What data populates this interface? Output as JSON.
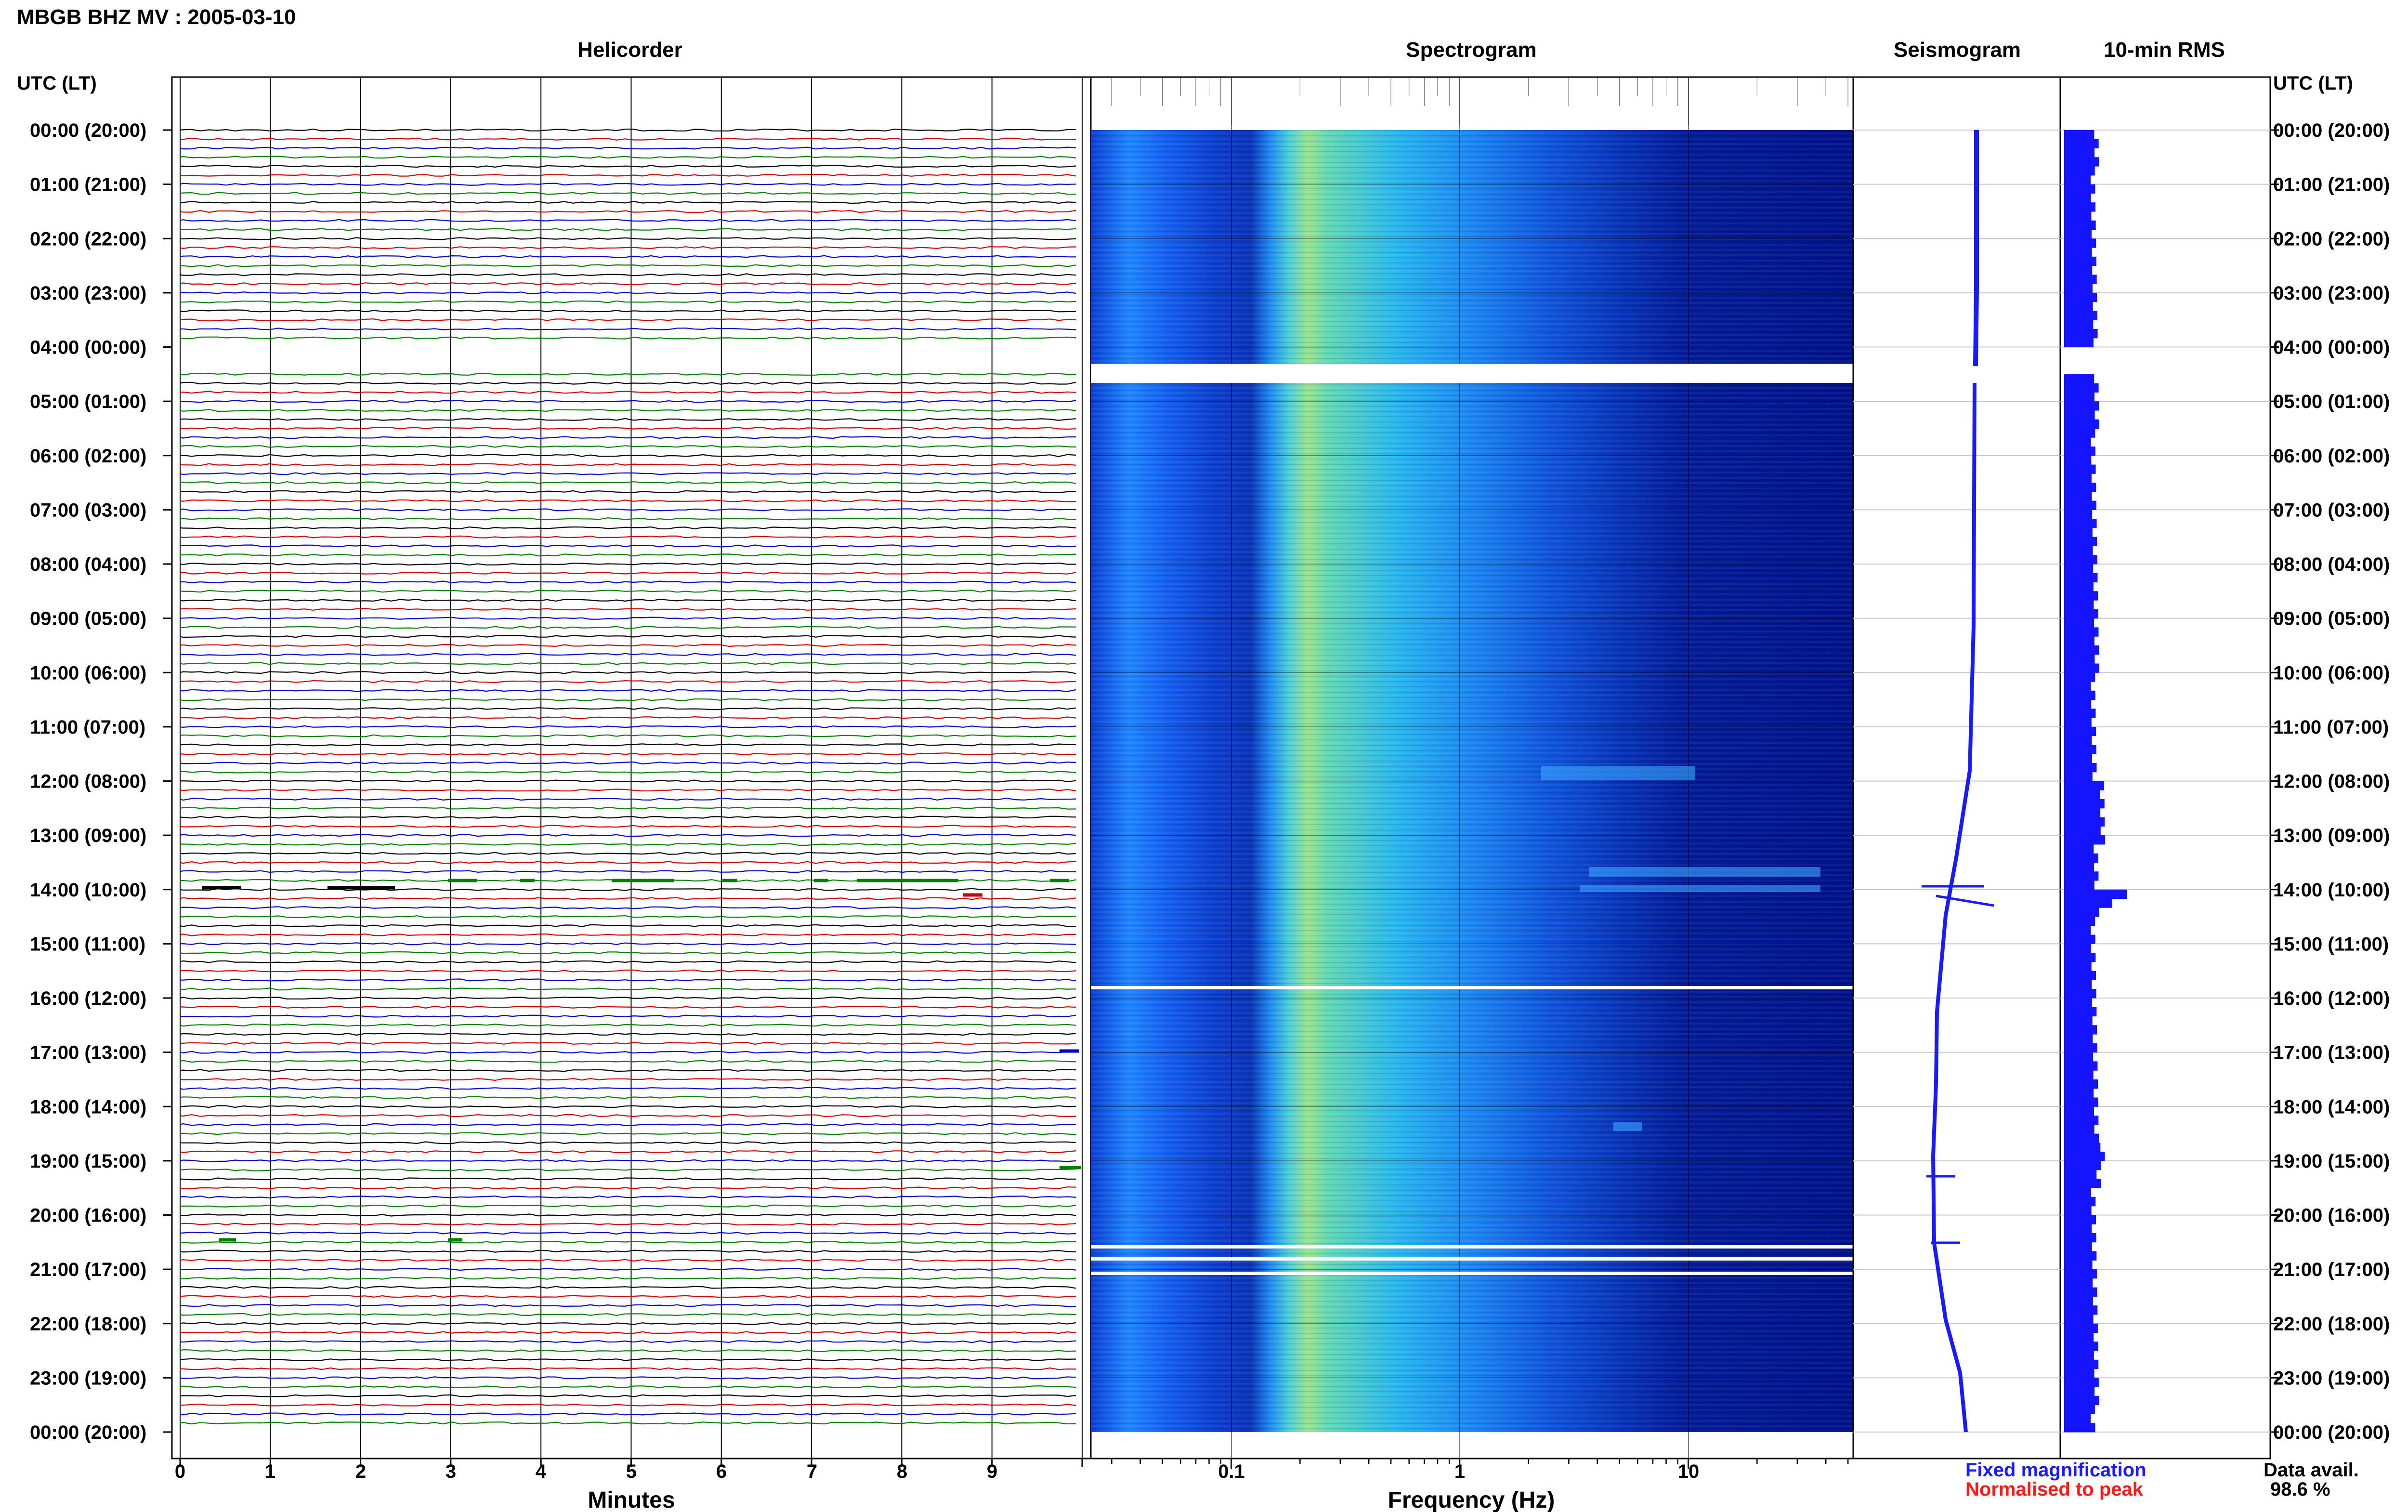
{
  "window": {
    "title": "MBGB BHZ MV : 2005-03-10"
  },
  "panels": {
    "helicorder": "Helicorder",
    "spectrogram": "Spectrogram",
    "seismogram": "Seismogram",
    "rms": "10-min RMS"
  },
  "axis": {
    "utc_header_left": "UTC (LT)",
    "utc_header_right": "UTC (LT)",
    "minutes_label": "Minutes",
    "frequency_label": "Frequency (Hz)",
    "minute_ticks": [
      "0",
      "1",
      "2",
      "3",
      "4",
      "5",
      "6",
      "7",
      "8",
      "9"
    ],
    "frequency_ticks": [
      "0.1",
      "1",
      "10"
    ]
  },
  "time_labels": [
    "00:00 (20:00)",
    "01:00 (21:00)",
    "02:00 (22:00)",
    "03:00 (23:00)",
    "04:00 (00:00)",
    "05:00 (01:00)",
    "06:00 (02:00)",
    "07:00 (03:00)",
    "08:00 (04:00)",
    "09:00 (05:00)",
    "10:00 (06:00)",
    "11:00 (07:00)",
    "12:00 (08:00)",
    "13:00 (09:00)",
    "14:00 (10:00)",
    "15:00 (11:00)",
    "16:00 (12:00)",
    "17:00 (13:00)",
    "18:00 (14:00)",
    "19:00 (15:00)",
    "20:00 (16:00)",
    "21:00 (17:00)",
    "22:00 (18:00)",
    "23:00 (19:00)",
    "00:00 (20:00)"
  ],
  "legend": {
    "fixed": "Fixed magnification",
    "normalised": "Normalised to peak",
    "fixed_color": "#1a1aff",
    "normalised_color": "#ff1a1a"
  },
  "data_availability": {
    "label": "Data avail.",
    "value": "98.6 %"
  },
  "colors": {
    "trace_cycle": [
      "#000000",
      "#cc0000",
      "#0000cc",
      "#008000"
    ],
    "seismogram": "#1a1aff",
    "rms": "#1414ff",
    "spectrogram_low": "#000090",
    "spectrogram_mid": "#1e78ff",
    "spectrogram_high": "#c8f060"
  }
}
